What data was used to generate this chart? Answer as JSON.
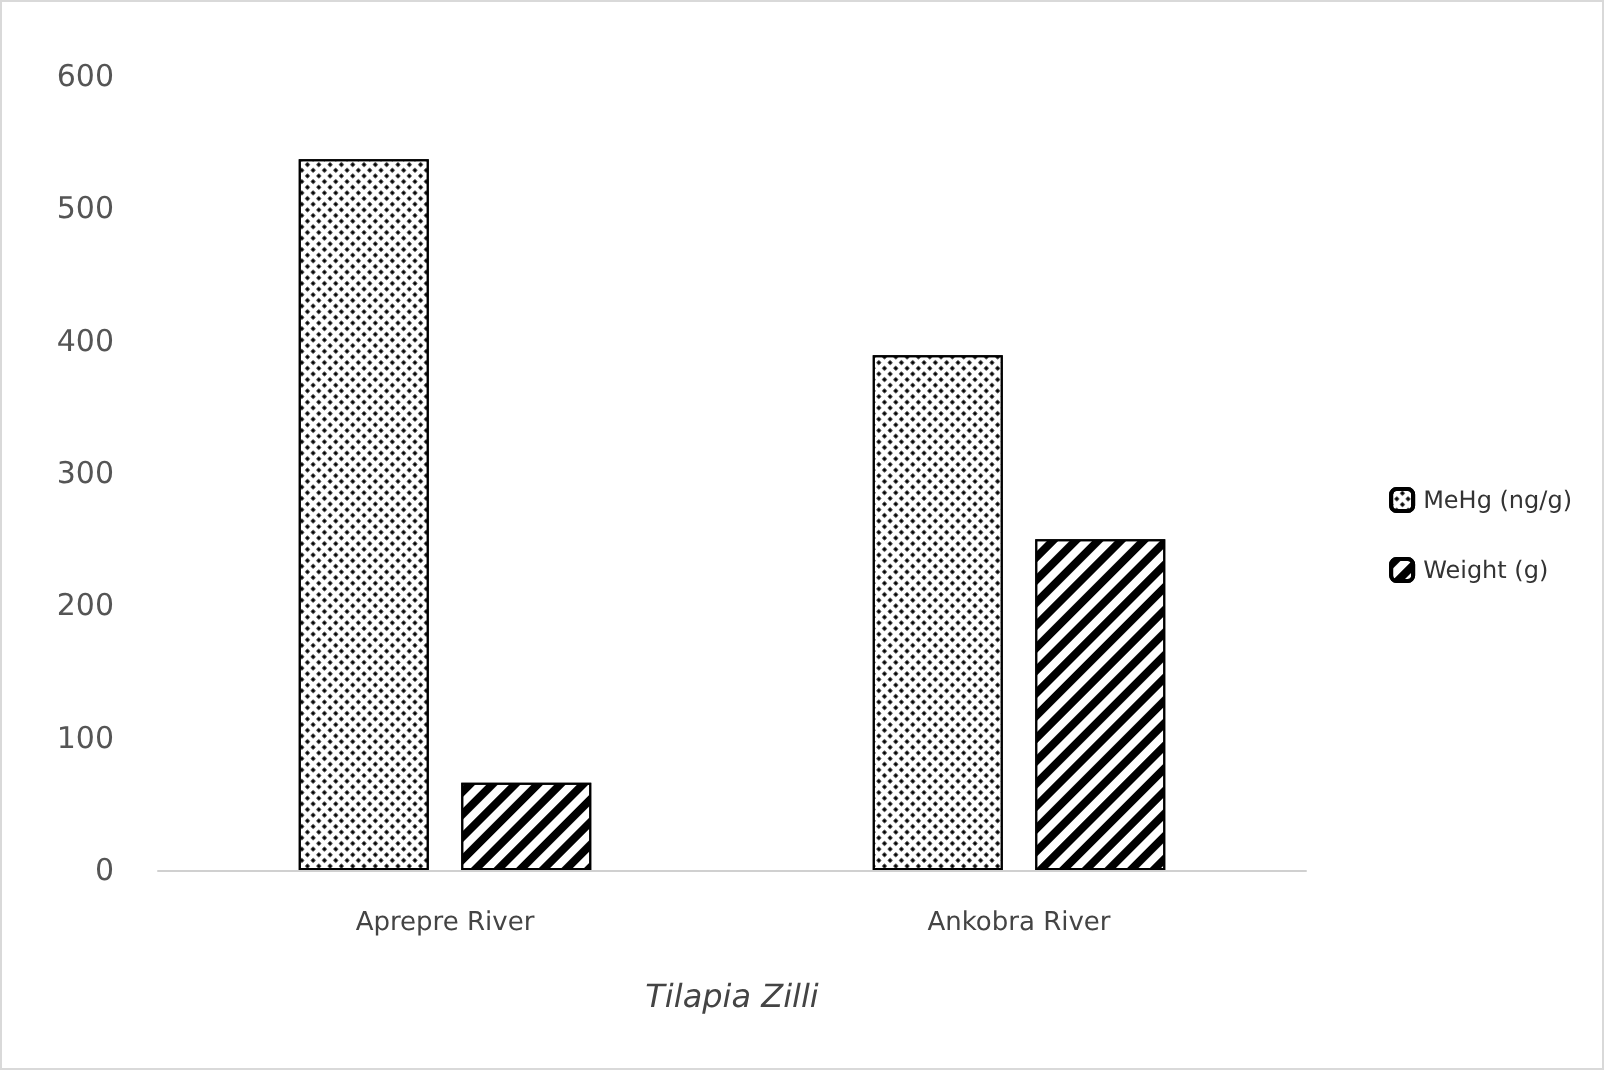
{
  "chart_data": {
    "type": "bar",
    "xlabel": "Tilapia Zilli",
    "categories": [
      "Aprepre River",
      "Ankobra River"
    ],
    "series": [
      {
        "name": "MeHg (ng/g)",
        "color": "#000000",
        "values": [
          537,
          389
        ]
      },
      {
        "name": "Weight (g)",
        "color": "#000000",
        "values": [
          66,
          250
        ]
      }
    ],
    "ylim": [
      0,
      600
    ],
    "yticks": [
      0,
      100,
      200,
      300,
      400,
      500,
      600
    ],
    "grid": false,
    "legend": "right"
  }
}
